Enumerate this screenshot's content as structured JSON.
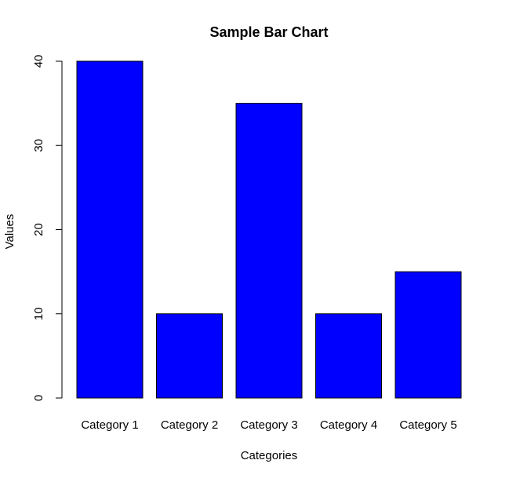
{
  "chart_data": {
    "type": "bar",
    "title": "Sample Bar Chart",
    "xlabel": "Categories",
    "ylabel": "Values",
    "categories": [
      "Category 1",
      "Category 2",
      "Category 3",
      "Category 4",
      "Category 5"
    ],
    "values": [
      40,
      10,
      35,
      10,
      15
    ],
    "ylim": [
      0,
      40
    ],
    "yticks": [
      "0",
      "10",
      "20",
      "30",
      "40"
    ],
    "grid": false,
    "bar_color": "#0000ff",
    "bar_border_color": "#000000"
  }
}
